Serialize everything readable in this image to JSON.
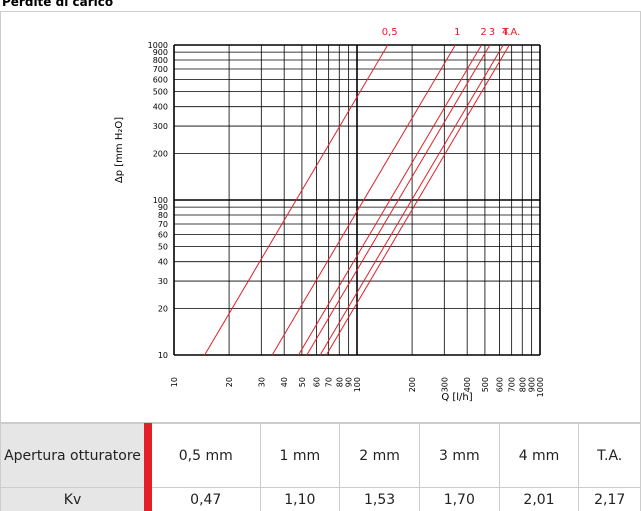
{
  "title": "Perdite di carico",
  "chart_data": {
    "type": "line",
    "xlabel": "Q [l/h]",
    "ylabel": "Δp [mm H₂O]",
    "xscale": "log",
    "yscale": "log",
    "grid": true,
    "xlim": [
      10,
      1000
    ],
    "ylim": [
      10,
      1000
    ],
    "xticks": [
      10,
      20,
      30,
      40,
      50,
      60,
      70,
      80,
      90,
      100,
      200,
      300,
      400,
      500,
      600,
      700,
      800,
      900,
      1000
    ],
    "yticks": [
      10,
      20,
      30,
      40,
      50,
      60,
      70,
      80,
      90,
      100,
      200,
      300,
      400,
      500,
      600,
      700,
      800,
      900,
      1000
    ],
    "series": [
      {
        "name": "0,5",
        "color": "#e2202a",
        "x": [
          14.7,
          147.2
        ],
        "values": [
          10,
          1000
        ]
      },
      {
        "name": "1",
        "color": "#e2202a",
        "x": [
          34.4,
          344.5
        ],
        "values": [
          10,
          1000
        ]
      },
      {
        "name": "2",
        "color": "#e2202a",
        "x": [
          47.9,
          479.1
        ],
        "values": [
          10,
          1000
        ]
      },
      {
        "name": "3",
        "color": "#e2202a",
        "x": [
          53.2,
          532.4
        ],
        "values": [
          10,
          1000
        ]
      },
      {
        "name": "4",
        "color": "#e2202a",
        "x": [
          62.9,
          629.4
        ],
        "values": [
          10,
          1000
        ]
      },
      {
        "name": "T.A.",
        "color": "#e2202a",
        "x": [
          68.0,
          679.6
        ],
        "values": [
          10,
          1000
        ]
      }
    ]
  },
  "table": {
    "header": [
      "Apertura otturatore",
      "0,5 mm",
      "1 mm",
      "2 mm",
      "3 mm",
      "4 mm",
      "T.A."
    ],
    "rows": [
      [
        "Kv",
        "0,47",
        "1,10",
        "1,53",
        "1,70",
        "2,01",
        "2,17"
      ]
    ]
  }
}
